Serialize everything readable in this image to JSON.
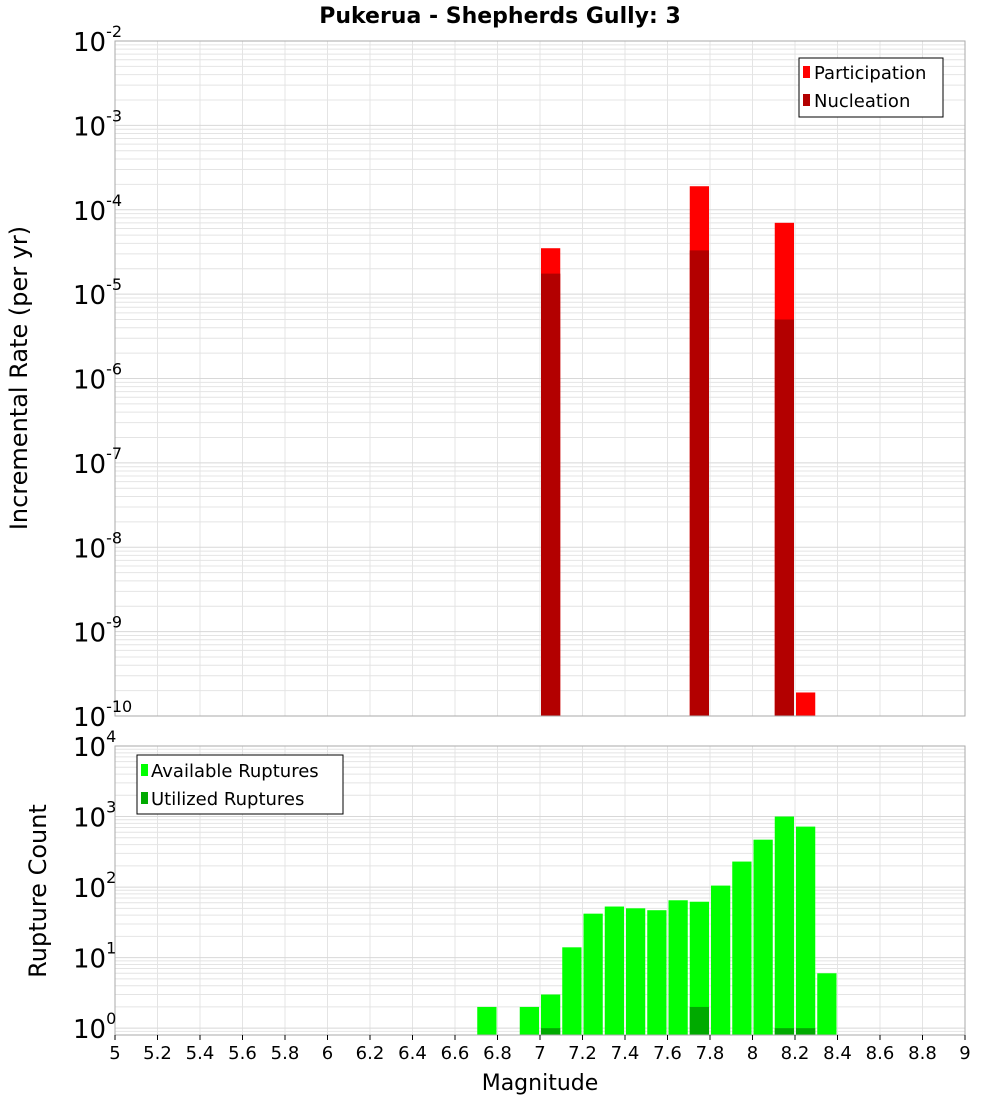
{
  "colors": {
    "participation": "#ff0000",
    "nucleation": "#b30000",
    "available": "#00ff00",
    "utilized": "#00aa00",
    "grid": "#e4e4e4",
    "frame": "#aaaaaa"
  },
  "chart_data": {
    "title": "Pukerua - Shepherds Gully: 3",
    "xlabel": "Magnitude",
    "xlim": [
      5,
      9
    ],
    "x_ticks": [
      5,
      5.2,
      5.4,
      5.6,
      5.8,
      6,
      6.2,
      6.4,
      6.6,
      6.8,
      7,
      7.2,
      7.4,
      7.6,
      7.8,
      8,
      8.2,
      8.4,
      8.6,
      8.8,
      9
    ],
    "x_tick_labels": [
      "5",
      "5.2",
      "5.4",
      "5.6",
      "5.8",
      "6",
      "6.2",
      "6.4",
      "6.6",
      "6.8",
      "7",
      "7.2",
      "7.4",
      "7.6",
      "7.8",
      "8",
      "8.2",
      "8.4",
      "8.6",
      "8.8",
      "9"
    ],
    "bin_width": 0.1,
    "panels": [
      {
        "type": "bar",
        "scale": "log",
        "ylabel": "Incremental Rate (per yr)",
        "ylim": [
          1e-10,
          0.01
        ],
        "y_tick_exponents": [
          -2,
          -3,
          -4,
          -5,
          -6,
          -7,
          -8,
          -9,
          -10
        ],
        "grid": true,
        "legend_position": "top-right",
        "series": [
          {
            "name": "Participation",
            "color_key": "participation",
            "points": [
              [
                7.05,
                3.5e-05
              ],
              [
                7.75,
                0.00019
              ],
              [
                8.15,
                7e-05
              ],
              [
                8.25,
                1.9e-10
              ]
            ]
          },
          {
            "name": "Nucleation",
            "color_key": "nucleation",
            "points": [
              [
                7.05,
                1.75e-05
              ],
              [
                7.75,
                3.3e-05
              ],
              [
                8.15,
                5e-06
              ]
            ]
          }
        ]
      },
      {
        "type": "bar",
        "scale": "log",
        "ylabel": "Rupture Count",
        "ylim": [
          0.8,
          10000
        ],
        "y_tick_exponents": [
          0,
          1,
          2,
          3,
          4
        ],
        "grid": true,
        "legend_position": "top-left",
        "series": [
          {
            "name": "Available Ruptures",
            "color_key": "available",
            "points": [
              [
                6.75,
                2
              ],
              [
                6.95,
                2
              ],
              [
                7.05,
                3
              ],
              [
                7.15,
                14
              ],
              [
                7.25,
                42
              ],
              [
                7.35,
                53
              ],
              [
                7.45,
                50
              ],
              [
                7.55,
                47
              ],
              [
                7.65,
                65
              ],
              [
                7.75,
                62
              ],
              [
                7.85,
                105
              ],
              [
                7.95,
                230
              ],
              [
                8.05,
                470
              ],
              [
                8.15,
                1000
              ],
              [
                8.25,
                720
              ],
              [
                8.35,
                6
              ]
            ]
          },
          {
            "name": "Utilized Ruptures",
            "color_key": "utilized",
            "points": [
              [
                7.05,
                1
              ],
              [
                7.75,
                2
              ],
              [
                8.15,
                1
              ],
              [
                8.25,
                1
              ]
            ]
          }
        ]
      }
    ]
  }
}
